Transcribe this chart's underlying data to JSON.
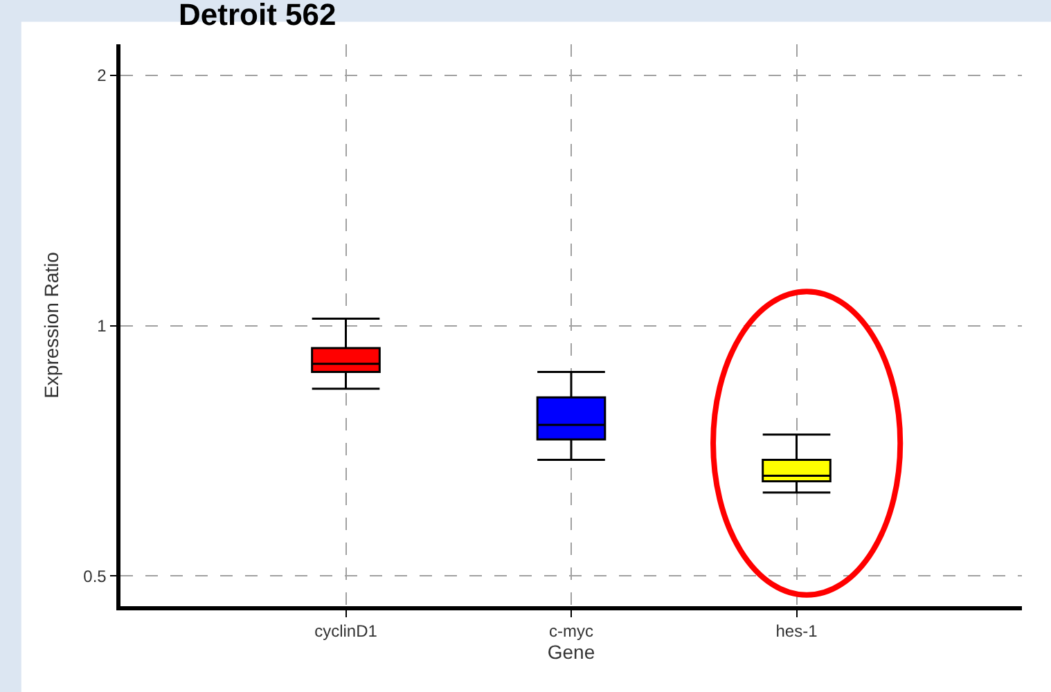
{
  "chart_data": {
    "type": "box",
    "title": "Detroit 562",
    "xlabel": "Gene",
    "ylabel": "Expression Ratio",
    "categories": [
      "cyclinD1",
      "c-myc",
      "hes-1"
    ],
    "colors": [
      "#ff0000",
      "#0000ff",
      "#ffff00"
    ],
    "boxes": [
      {
        "low": 0.84,
        "q1": 0.88,
        "median": 0.9,
        "q3": 0.94,
        "high": 1.02
      },
      {
        "low": 0.69,
        "q1": 0.73,
        "median": 0.76,
        "q3": 0.82,
        "high": 0.88
      },
      {
        "low": 0.63,
        "q1": 0.65,
        "median": 0.66,
        "q3": 0.69,
        "high": 0.74
      }
    ],
    "ylim": [
      0.46,
      2.18
    ],
    "yticks": [
      0.5,
      1,
      2
    ],
    "log": true,
    "grid": true
  }
}
